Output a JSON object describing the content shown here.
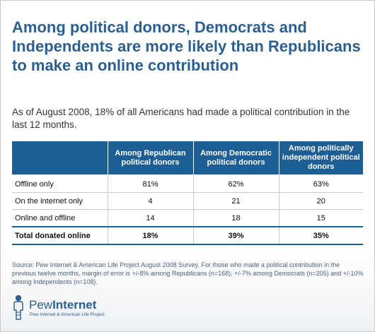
{
  "chart_data": {
    "type": "table",
    "title": "Among political donors, Democrats and Independents are more likely than Republicans to make an online contribution",
    "subtitle": "As of August 2008, 18% of all Americans had made a political contribution in the last 12 months.",
    "columns": [
      "",
      "Among Republican political donors",
      "Among Democratic political donors",
      "Among politically independent political donors"
    ],
    "rows": [
      {
        "label": "Offline only",
        "values": [
          "81%",
          "62%",
          "63%"
        ]
      },
      {
        "label": "On the internet only",
        "values": [
          "4",
          "21",
          "20"
        ]
      },
      {
        "label": "Online and offline",
        "values": [
          "14",
          "18",
          "15"
        ]
      },
      {
        "label": "Total donated online",
        "values": [
          "18%",
          "39%",
          "35%"
        ]
      }
    ],
    "source": "Source:  Pew Internet & American Life Project August 2008 Survey. For those who made a political contribution in the previous twelve months, margin of error is +/-8% among Republicans (n=168), +/-7% among Democrats (n=205) and +/-10% among Independents (n=108)."
  },
  "logo": {
    "word1": "Pew",
    "word2": "Internet",
    "tagline": "Pew Internet & American Life Project",
    "color": "#2a5f8f"
  },
  "colors": {
    "title": "#2a5f8f",
    "header_bg": "#1d5e95",
    "header_text": "#ffffff"
  }
}
